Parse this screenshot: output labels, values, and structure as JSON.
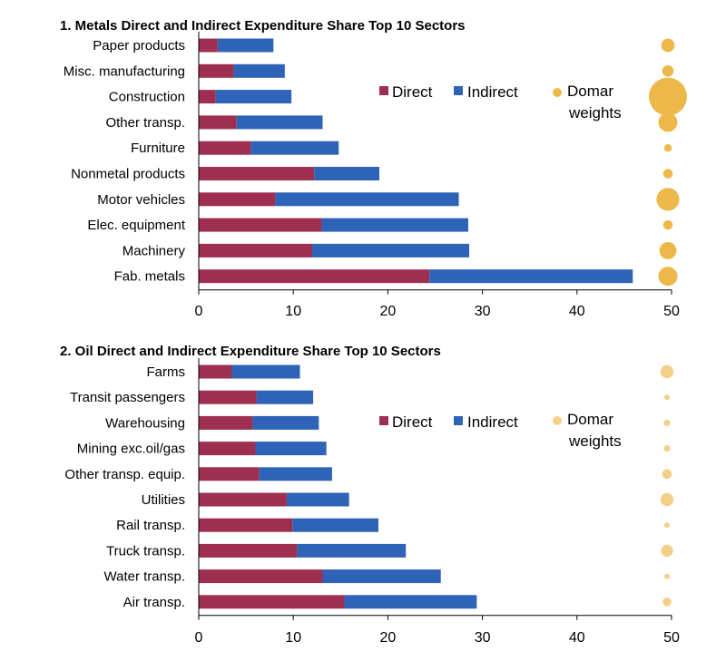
{
  "chart_data": [
    {
      "type": "bar",
      "orientation": "horizontal",
      "stacked": true,
      "title": "1. Metals Direct and Indirect Expenditure Share Top 10 Sectors",
      "categories": [
        "Paper products",
        "Misc. manufacturing",
        "Construction",
        "Other transp.",
        "Furniture",
        "Nonmetal products",
        "Motor vehicles",
        "Elec. equipment",
        "Machinery",
        "Fab. metals"
      ],
      "series": [
        {
          "name": "Direct",
          "values": [
            2.0,
            3.7,
            1.8,
            4.0,
            5.5,
            12.2,
            8.1,
            13.0,
            12.0,
            24.4
          ]
        },
        {
          "name": "Indirect",
          "values": [
            5.9,
            5.4,
            8.0,
            9.1,
            9.3,
            6.9,
            19.4,
            15.5,
            16.6,
            21.5
          ]
        },
        {
          "name": "Domar weights",
          "kind": "bubble",
          "sizes": [
            0.35,
            0.3,
            1.0,
            0.5,
            0.2,
            0.25,
            0.6,
            0.25,
            0.45,
            0.5
          ]
        }
      ],
      "xlim": [
        0,
        50
      ],
      "xticks": [
        "0",
        "10",
        "20",
        "30",
        "40",
        "50"
      ],
      "legend": [
        "Direct",
        "Indirect",
        "Domar",
        "weights"
      ],
      "colors": {
        "direct": "#9E2F50",
        "indirect": "#2E63B8",
        "domar": "#ECB84A"
      }
    },
    {
      "type": "bar",
      "orientation": "horizontal",
      "stacked": true,
      "title": "2. Oil Direct and Indirect Expenditure Share Top 10  Sectors",
      "categories": [
        "Farms",
        "Transit passengers",
        "Warehousing",
        "Mining exc.oil/gas",
        "Other transp. equip.",
        "Utilities",
        "Rail transp.",
        "Truck transp.",
        "Water transp.",
        "Air transp."
      ],
      "series": [
        {
          "name": "Direct",
          "values": [
            3.5,
            6.1,
            5.7,
            6.0,
            6.4,
            9.3,
            9.9,
            10.4,
            13.1,
            15.4
          ]
        },
        {
          "name": "Indirect",
          "values": [
            7.2,
            6.0,
            7.0,
            7.5,
            7.7,
            6.6,
            9.1,
            11.5,
            12.5,
            14.0
          ]
        },
        {
          "name": "Domar weights",
          "kind": "bubble",
          "sizes": [
            0.6,
            0.25,
            0.3,
            0.3,
            0.45,
            0.6,
            0.25,
            0.55,
            0.2,
            0.4
          ]
        }
      ],
      "xlim": [
        0,
        50
      ],
      "xticks": [
        "0",
        "10",
        "20",
        "30",
        "40",
        "50"
      ],
      "legend": [
        "Direct",
        "Indirect",
        "Domar",
        "weights"
      ],
      "colors": {
        "direct": "#9E2F50",
        "indirect": "#2E63B8",
        "domar": "#F3D08A"
      }
    }
  ]
}
